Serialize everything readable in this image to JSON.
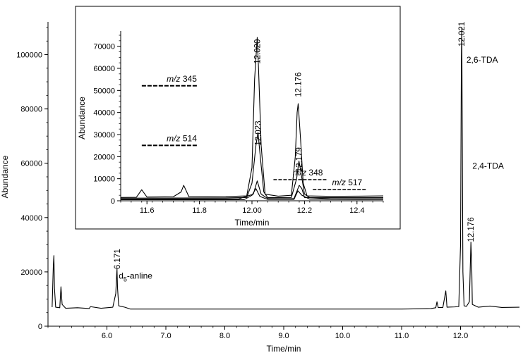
{
  "chart_data": [
    {
      "id": "main",
      "type": "line",
      "xlabel": "Time/min",
      "ylabel": "Abundance",
      "xlim": [
        5.0,
        13.0
      ],
      "ylim": [
        0,
        110000
      ],
      "xticks": [
        "6.0",
        "7.0",
        "8.0",
        "9.0",
        "10.0",
        "11.0",
        "12.0"
      ],
      "xtick_values": [
        6.0,
        7.0,
        8.0,
        9.0,
        10.0,
        11.0,
        12.0
      ],
      "yticks": [
        "0",
        "20000",
        "40000",
        "60000",
        "80000",
        "100000"
      ],
      "ytick_values": [
        0,
        20000,
        40000,
        60000,
        80000,
        100000
      ],
      "peak_labels": [
        {
          "text": "6.171",
          "x": 6.171,
          "y": 21000
        },
        {
          "text": "12.021",
          "x": 12.021,
          "y": 103000
        },
        {
          "text": "12.176",
          "x": 12.176,
          "y": 31000
        }
      ],
      "annotations": [
        {
          "text": "2,6-TDA",
          "x": 12.1,
          "y": 97000
        },
        {
          "text": "2,4-TDA",
          "x": 12.2,
          "y": 58000
        },
        {
          "text": "d",
          "sub": "5",
          "rest": "-anline",
          "x": 6.2,
          "y": 17500
        }
      ],
      "series": [
        {
          "points": [
            [
              5.07,
              7000
            ],
            [
              5.09,
              22000
            ],
            [
              5.1,
              26000
            ],
            [
              5.11,
              14000
            ],
            [
              5.13,
              7000
            ],
            [
              5.2,
              6800
            ],
            [
              5.22,
              14500
            ],
            [
              5.24,
              8000
            ],
            [
              5.3,
              6600
            ],
            [
              5.5,
              6800
            ],
            [
              5.7,
              6500
            ],
            [
              5.72,
              7200
            ],
            [
              5.9,
              6600
            ],
            [
              6.0,
              6800
            ],
            [
              6.1,
              7000
            ],
            [
              6.15,
              12000
            ],
            [
              6.165,
              19000
            ],
            [
              6.171,
              21000
            ],
            [
              6.18,
              14000
            ],
            [
              6.2,
              7500
            ],
            [
              6.3,
              7000
            ],
            [
              6.4,
              6300
            ],
            [
              7.0,
              6300
            ],
            [
              8.0,
              6300
            ],
            [
              9.0,
              6300
            ],
            [
              10.0,
              6300
            ],
            [
              11.0,
              6300
            ],
            [
              11.3,
              6400
            ],
            [
              11.5,
              6500
            ],
            [
              11.58,
              6800
            ],
            [
              11.6,
              9000
            ],
            [
              11.62,
              6900
            ],
            [
              11.7,
              6900
            ],
            [
              11.75,
              13000
            ],
            [
              11.77,
              7000
            ],
            [
              11.9,
              7100
            ],
            [
              11.97,
              7200
            ],
            [
              12.0,
              30000
            ],
            [
              12.013,
              95000
            ],
            [
              12.021,
              110000
            ],
            [
              12.03,
              70000
            ],
            [
              12.04,
              20000
            ],
            [
              12.06,
              7500
            ],
            [
              12.1,
              7300
            ],
            [
              12.15,
              9000
            ],
            [
              12.165,
              22000
            ],
            [
              12.176,
              31000
            ],
            [
              12.19,
              22000
            ],
            [
              12.2,
              8000
            ],
            [
              12.3,
              7000
            ],
            [
              12.5,
              7400
            ],
            [
              12.7,
              6900
            ],
            [
              13.0,
              7000
            ]
          ]
        }
      ]
    },
    {
      "id": "inset",
      "type": "line",
      "xlabel": "Time/min",
      "ylabel": "Abundance",
      "xlim": [
        11.5,
        12.5
      ],
      "ylim": [
        0,
        75000
      ],
      "xticks": [
        "11.6",
        "11.8",
        "12.00",
        "12.2",
        "12.4"
      ],
      "xtick_values": [
        11.6,
        11.8,
        12.0,
        12.2,
        12.4
      ],
      "yticks": [
        "0",
        "10000",
        "20000",
        "30000",
        "40000",
        "50000",
        "60000",
        "70000"
      ],
      "ytick_values": [
        0,
        10000,
        20000,
        30000,
        40000,
        50000,
        60000,
        70000
      ],
      "peak_labels": [
        {
          "text": "12.020",
          "x": 12.02,
          "y": 62000
        },
        {
          "text": "12.176",
          "x": 12.176,
          "y": 47000
        },
        {
          "text": "12.023",
          "x": 12.023,
          "y": 25000
        },
        {
          "text": "12.179",
          "x": 12.179,
          "y": 13000
        }
      ],
      "ion_labels": [
        {
          "prefix": "m/z",
          "num": "345",
          "x": 11.79,
          "y": 54000
        },
        {
          "prefix": "m/z",
          "num": "514",
          "x": 11.79,
          "y": 27000
        },
        {
          "prefix": "m/z",
          "num": "348",
          "x": 12.27,
          "y": 11500
        },
        {
          "prefix": "m/z",
          "num": "517",
          "x": 12.42,
          "y": 7000
        }
      ],
      "series": [
        {
          "points": [
            [
              11.5,
              1500
            ],
            [
              11.56,
              1600
            ],
            [
              11.58,
              5000
            ],
            [
              11.6,
              1700
            ],
            [
              11.7,
              1800
            ],
            [
              11.73,
              4000
            ],
            [
              11.74,
              7000
            ],
            [
              11.76,
              1800
            ],
            [
              11.9,
              1900
            ],
            [
              11.98,
              2200
            ],
            [
              12.0,
              15000
            ],
            [
              12.01,
              55000
            ],
            [
              12.02,
              74000
            ],
            [
              12.025,
              60000
            ],
            [
              12.035,
              25000
            ],
            [
              12.05,
              3000
            ],
            [
              12.1,
              2100
            ],
            [
              12.15,
              2500
            ],
            [
              12.165,
              20000
            ],
            [
              12.172,
              40000
            ],
            [
              12.176,
              44000
            ],
            [
              12.185,
              28000
            ],
            [
              12.195,
              8000
            ],
            [
              12.21,
              2200
            ],
            [
              12.3,
              2000
            ],
            [
              12.4,
              2100
            ],
            [
              12.5,
              2200
            ]
          ]
        },
        {
          "points": [
            [
              11.5,
              1200
            ],
            [
              11.9,
              1300
            ],
            [
              11.98,
              1500
            ],
            [
              12.0,
              8000
            ],
            [
              12.015,
              25000
            ],
            [
              12.023,
              31000
            ],
            [
              12.03,
              22000
            ],
            [
              12.045,
              4000
            ],
            [
              12.06,
              1400
            ],
            [
              12.15,
              1500
            ],
            [
              12.17,
              10000
            ],
            [
              12.179,
              18000
            ],
            [
              12.185,
              14000
            ],
            [
              12.2,
              3000
            ],
            [
              12.22,
              1400
            ],
            [
              12.5,
              1400
            ]
          ]
        },
        {
          "points": [
            [
              11.5,
              800
            ],
            [
              11.95,
              900
            ],
            [
              12.005,
              3000
            ],
            [
              12.02,
              9000
            ],
            [
              12.035,
              3000
            ],
            [
              12.06,
              1000
            ],
            [
              12.16,
              1000
            ],
            [
              12.18,
              7000
            ],
            [
              12.19,
              5500
            ],
            [
              12.2,
              1500
            ],
            [
              12.3,
              900
            ],
            [
              12.5,
              900
            ]
          ]
        },
        {
          "points": [
            [
              11.5,
              500
            ],
            [
              11.97,
              500
            ],
            [
              12.0,
              2500
            ],
            [
              12.015,
              5500
            ],
            [
              12.03,
              2000
            ],
            [
              12.06,
              600
            ],
            [
              12.16,
              600
            ],
            [
              12.175,
              4500
            ],
            [
              12.19,
              2500
            ],
            [
              12.22,
              700
            ],
            [
              12.5,
              600
            ]
          ]
        }
      ]
    }
  ]
}
